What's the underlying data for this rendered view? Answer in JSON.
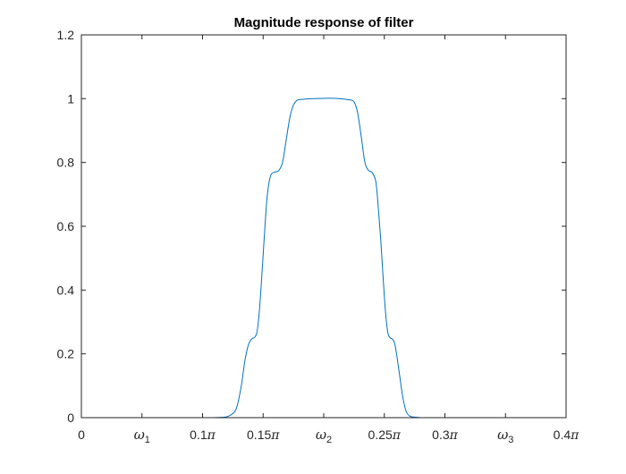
{
  "chart_data": {
    "type": "line",
    "title": "Magnitude response of filter",
    "xlabel": "",
    "ylabel": "",
    "xlim": [
      0,
      0.4
    ],
    "ylim": [
      0,
      1.2
    ],
    "grid": false,
    "legend": "none",
    "x_ticks": [
      {
        "value": 0,
        "label": "0"
      },
      {
        "value": 0.05,
        "label": "ω",
        "sub": "1"
      },
      {
        "value": 0.1,
        "label": "0.1π"
      },
      {
        "value": 0.15,
        "label": "0.15π"
      },
      {
        "value": 0.2,
        "label": "ω",
        "sub": "2"
      },
      {
        "value": 0.25,
        "label": "0.25π"
      },
      {
        "value": 0.3,
        "label": "0.3π"
      },
      {
        "value": 0.35,
        "label": "ω",
        "sub": "3"
      },
      {
        "value": 0.4,
        "label": "0.4π"
      }
    ],
    "y_ticks": [
      {
        "value": 0,
        "label": "0"
      },
      {
        "value": 0.2,
        "label": "0.2"
      },
      {
        "value": 0.4,
        "label": "0.4"
      },
      {
        "value": 0.6,
        "label": "0.6"
      },
      {
        "value": 0.8,
        "label": "0.8"
      },
      {
        "value": 1,
        "label": "1"
      },
      {
        "value": 1.2,
        "label": "1.2"
      }
    ],
    "series": [
      {
        "color": "#0072BD",
        "x": [
          0,
          0.05,
          0.1,
          0.115,
          0.12,
          0.124,
          0.128,
          0.132,
          0.135,
          0.138,
          0.141,
          0.143,
          0.145,
          0.147,
          0.149,
          0.151,
          0.153,
          0.155,
          0.157,
          0.16,
          0.163,
          0.166,
          0.169,
          0.172,
          0.175,
          0.178,
          0.18,
          0.185,
          0.19,
          0.2,
          0.21,
          0.22,
          0.225,
          0.228,
          0.231,
          0.234,
          0.237,
          0.24,
          0.243,
          0.245,
          0.247,
          0.249,
          0.251,
          0.253,
          0.255,
          0.257,
          0.259,
          0.262,
          0.265,
          0.268,
          0.271,
          0.274,
          0.277,
          0.28,
          0.285,
          0.3,
          0.35,
          0.4
        ],
        "y": [
          0,
          0,
          0,
          0.001,
          0.003,
          0.01,
          0.03,
          0.1,
          0.18,
          0.23,
          0.248,
          0.252,
          0.27,
          0.34,
          0.45,
          0.57,
          0.68,
          0.74,
          0.765,
          0.77,
          0.775,
          0.8,
          0.87,
          0.94,
          0.98,
          0.995,
          0.997,
          0.999,
          1.0,
          1.001,
          1.001,
          0.997,
          0.99,
          0.955,
          0.88,
          0.8,
          0.775,
          0.768,
          0.74,
          0.66,
          0.56,
          0.44,
          0.33,
          0.265,
          0.25,
          0.245,
          0.225,
          0.15,
          0.07,
          0.02,
          0.005,
          0.002,
          0.001,
          0,
          0,
          0,
          0,
          0
        ]
      }
    ]
  }
}
